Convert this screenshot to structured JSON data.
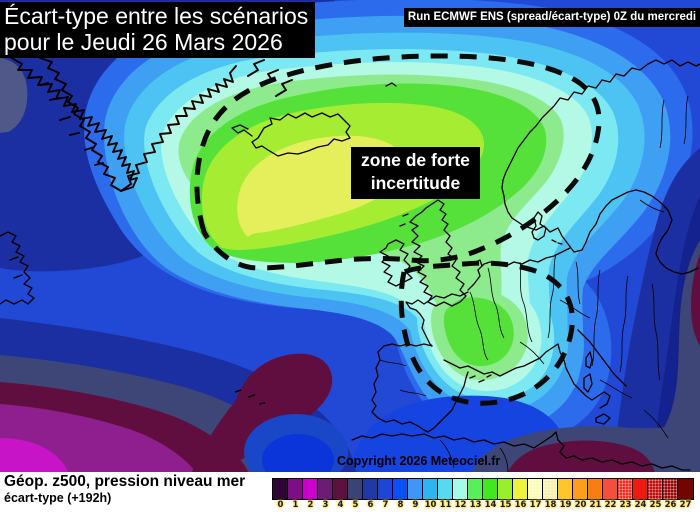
{
  "header": {
    "title_line1": "Écart-type entre les scénarios",
    "title_line2": "pour le Jeudi 26 Mars 2026",
    "run_label": "Run ECMWF ENS (spread/écart-type) 0Z du mercredi"
  },
  "map_annotation": {
    "line1": "zone de forte",
    "line2": "incertitude"
  },
  "copyright": "Copyright 2026 Meteociel.fr",
  "footer": {
    "param": "Géop. z500, pression niveau mer",
    "detail": "écart-type  (+192h)"
  },
  "legend": {
    "values": [
      "0",
      "1",
      "2",
      "3",
      "4",
      "5",
      "6",
      "7",
      "8",
      "9",
      "10",
      "11",
      "12",
      "13",
      "14",
      "15",
      "16",
      "17",
      "18",
      "19",
      "20",
      "21",
      "22",
      "23",
      "24",
      "25",
      "26",
      "27"
    ],
    "colors": [
      "#2e0636",
      "#7c0f86",
      "#cc00cc",
      "#6b1c74",
      "#5e1040",
      "#3a4373",
      "#1f3aa8",
      "#1e45d6",
      "#0a50f5",
      "#3f97f5",
      "#2fb4f2",
      "#57d9ef",
      "#a5fbe7",
      "#55f05a",
      "#3fe81f",
      "#97f02b",
      "#eef23f",
      "#fbfcb3",
      "#f7efad",
      "#fcc62c",
      "#fa9e1b",
      "#f97d16",
      "#f54e3c",
      "#f52d20",
      "#ee1910",
      "#c50d0d",
      "#9e0808",
      "#740404"
    ],
    "dotted_indices": [
      17,
      18,
      23,
      25,
      26
    ]
  },
  "map": {
    "colors": {
      "base": "#2149d6",
      "mblue": "#2c6cec",
      "lblue": "#3f9ff2",
      "sky": "#4cc3f2",
      "cyan": "#7ce9f2",
      "palecyan": "#b4f9e5",
      "mint": "#8deb8d",
      "green": "#55e13a",
      "ygreen": "#a5ec33",
      "yellow": "#e4ef5b",
      "navy": "#1c2fa2",
      "darknavy": "#13228f",
      "slate": "#3d4677",
      "lslate": "#50588a",
      "maroon": "#600e3f",
      "purple": "#8f1f8f",
      "magenta": "#c714c7",
      "ring": "#1a46c8",
      "core": "#0b35d8",
      "brightband": "#1544e0",
      "coast": "#000000",
      "dash": "#0a0a0a"
    }
  }
}
